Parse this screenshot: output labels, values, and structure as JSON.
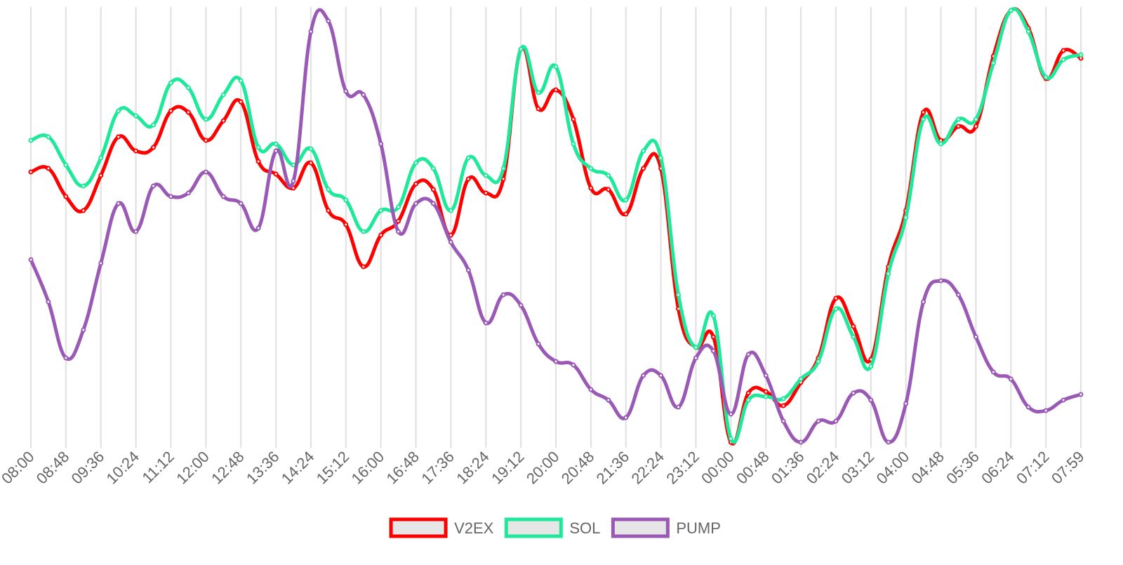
{
  "chart_data": {
    "type": "line",
    "categories": [
      "08:00",
      null,
      "08:48",
      null,
      "09:36",
      null,
      "10:24",
      null,
      "11:12",
      null,
      "12:00",
      null,
      "12:48",
      null,
      "13:36",
      null,
      "14:24",
      null,
      "15:12",
      null,
      "16:00",
      null,
      "16:48",
      null,
      "17:36",
      null,
      "18:24",
      null,
      "19:12",
      null,
      "20:00",
      null,
      "20:48",
      null,
      "21:36",
      null,
      "22:24",
      null,
      "23:12",
      null,
      "00:00",
      null,
      "00:48",
      null,
      "01:36",
      null,
      "02:24",
      null,
      "03:12",
      null,
      "04:00",
      null,
      "04:48",
      null,
      "05:36",
      null,
      "06:24",
      null,
      "07:12",
      null,
      "07:59"
    ],
    "series": [
      {
        "name": "V2EX",
        "color": "#ff0000",
        "values": [
          385,
          390,
          350,
          330,
          380,
          435,
          415,
          420,
          472,
          470,
          430,
          458,
          485,
          400,
          382,
          362,
          398,
          330,
          310,
          250,
          295,
          315,
          368,
          360,
          295,
          375,
          355,
          375,
          560,
          475,
          502,
          460,
          362,
          360,
          325,
          390,
          390,
          190,
          135,
          150,
          0,
          70,
          72,
          52,
          85,
          120,
          205,
          165,
          118,
          250,
          330,
          470,
          430,
          450,
          450,
          550,
          615,
          590,
          518,
          558,
          547
        ]
      },
      {
        "name": "SOL",
        "color": "#1ee89a",
        "values": [
          430,
          435,
          395,
          365,
          405,
          472,
          465,
          452,
          512,
          505,
          460,
          495,
          515,
          420,
          425,
          395,
          418,
          360,
          345,
          300,
          330,
          335,
          398,
          390,
          330,
          405,
          380,
          390,
          560,
          498,
          535,
          425,
          390,
          380,
          345,
          415,
          405,
          210,
          135,
          180,
          5,
          60,
          65,
          62,
          90,
          115,
          190,
          150,
          108,
          240,
          320,
          460,
          425,
          460,
          460,
          540,
          615,
          585,
          520,
          545,
          552
        ]
      },
      {
        "name": "PUMP",
        "color": "#9b59b6",
        "values": [
          260,
          200,
          120,
          160,
          255,
          340,
          300,
          365,
          350,
          355,
          385,
          350,
          340,
          305,
          415,
          372,
          585,
          600,
          500,
          495,
          425,
          300,
          340,
          340,
          285,
          245,
          170,
          210,
          195,
          140,
          115,
          110,
          75,
          60,
          35,
          95,
          95,
          50,
          120,
          130,
          40,
          125,
          95,
          30,
          0,
          30,
          30,
          70,
          60,
          0,
          55,
          200,
          230,
          210,
          150,
          100,
          90,
          50,
          45,
          60,
          68
        ]
      }
    ],
    "ylim": [
      0,
      620
    ],
    "grid": true,
    "legend": "bottom"
  }
}
